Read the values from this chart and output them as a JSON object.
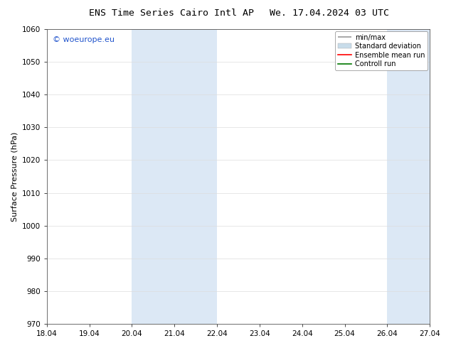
{
  "title_left": "ENS Time Series Cairo Intl AP",
  "title_right": "We. 17.04.2024 03 UTC",
  "ylabel": "Surface Pressure (hPa)",
  "ylim": [
    970,
    1060
  ],
  "yticks": [
    970,
    980,
    990,
    1000,
    1010,
    1020,
    1030,
    1040,
    1050,
    1060
  ],
  "xlim_start": 0.0,
  "xlim_end": 9.0,
  "xtick_positions": [
    0,
    1,
    2,
    3,
    4,
    5,
    6,
    7,
    8,
    9
  ],
  "xtick_labels": [
    "18.04",
    "19.04",
    "20.04",
    "21.04",
    "22.04",
    "23.04",
    "24.04",
    "25.04",
    "26.04",
    "27.04"
  ],
  "shaded_bands": [
    {
      "xmin": 2.0,
      "xmax": 4.0
    },
    {
      "xmin": 8.0,
      "xmax": 9.5
    }
  ],
  "shade_color": "#dce8f5",
  "watermark_text": "© woeurope.eu",
  "watermark_color": "#2255cc",
  "legend_items": [
    {
      "label": "min/max",
      "color": "#999999",
      "lw": 1.2,
      "style": "minmax"
    },
    {
      "label": "Standard deviation",
      "color": "#c8dcea",
      "lw": 5,
      "style": "band"
    },
    {
      "label": "Ensemble mean run",
      "color": "#ff0000",
      "lw": 1.2,
      "style": "line"
    },
    {
      "label": "Controll run",
      "color": "#007700",
      "lw": 1.2,
      "style": "line"
    }
  ],
  "bg_color": "#ffffff",
  "title_fontsize": 9.5,
  "tick_fontsize": 7.5,
  "ylabel_fontsize": 8,
  "watermark_fontsize": 8,
  "legend_fontsize": 7,
  "grid_color": "#dddddd",
  "grid_lw": 0.5
}
